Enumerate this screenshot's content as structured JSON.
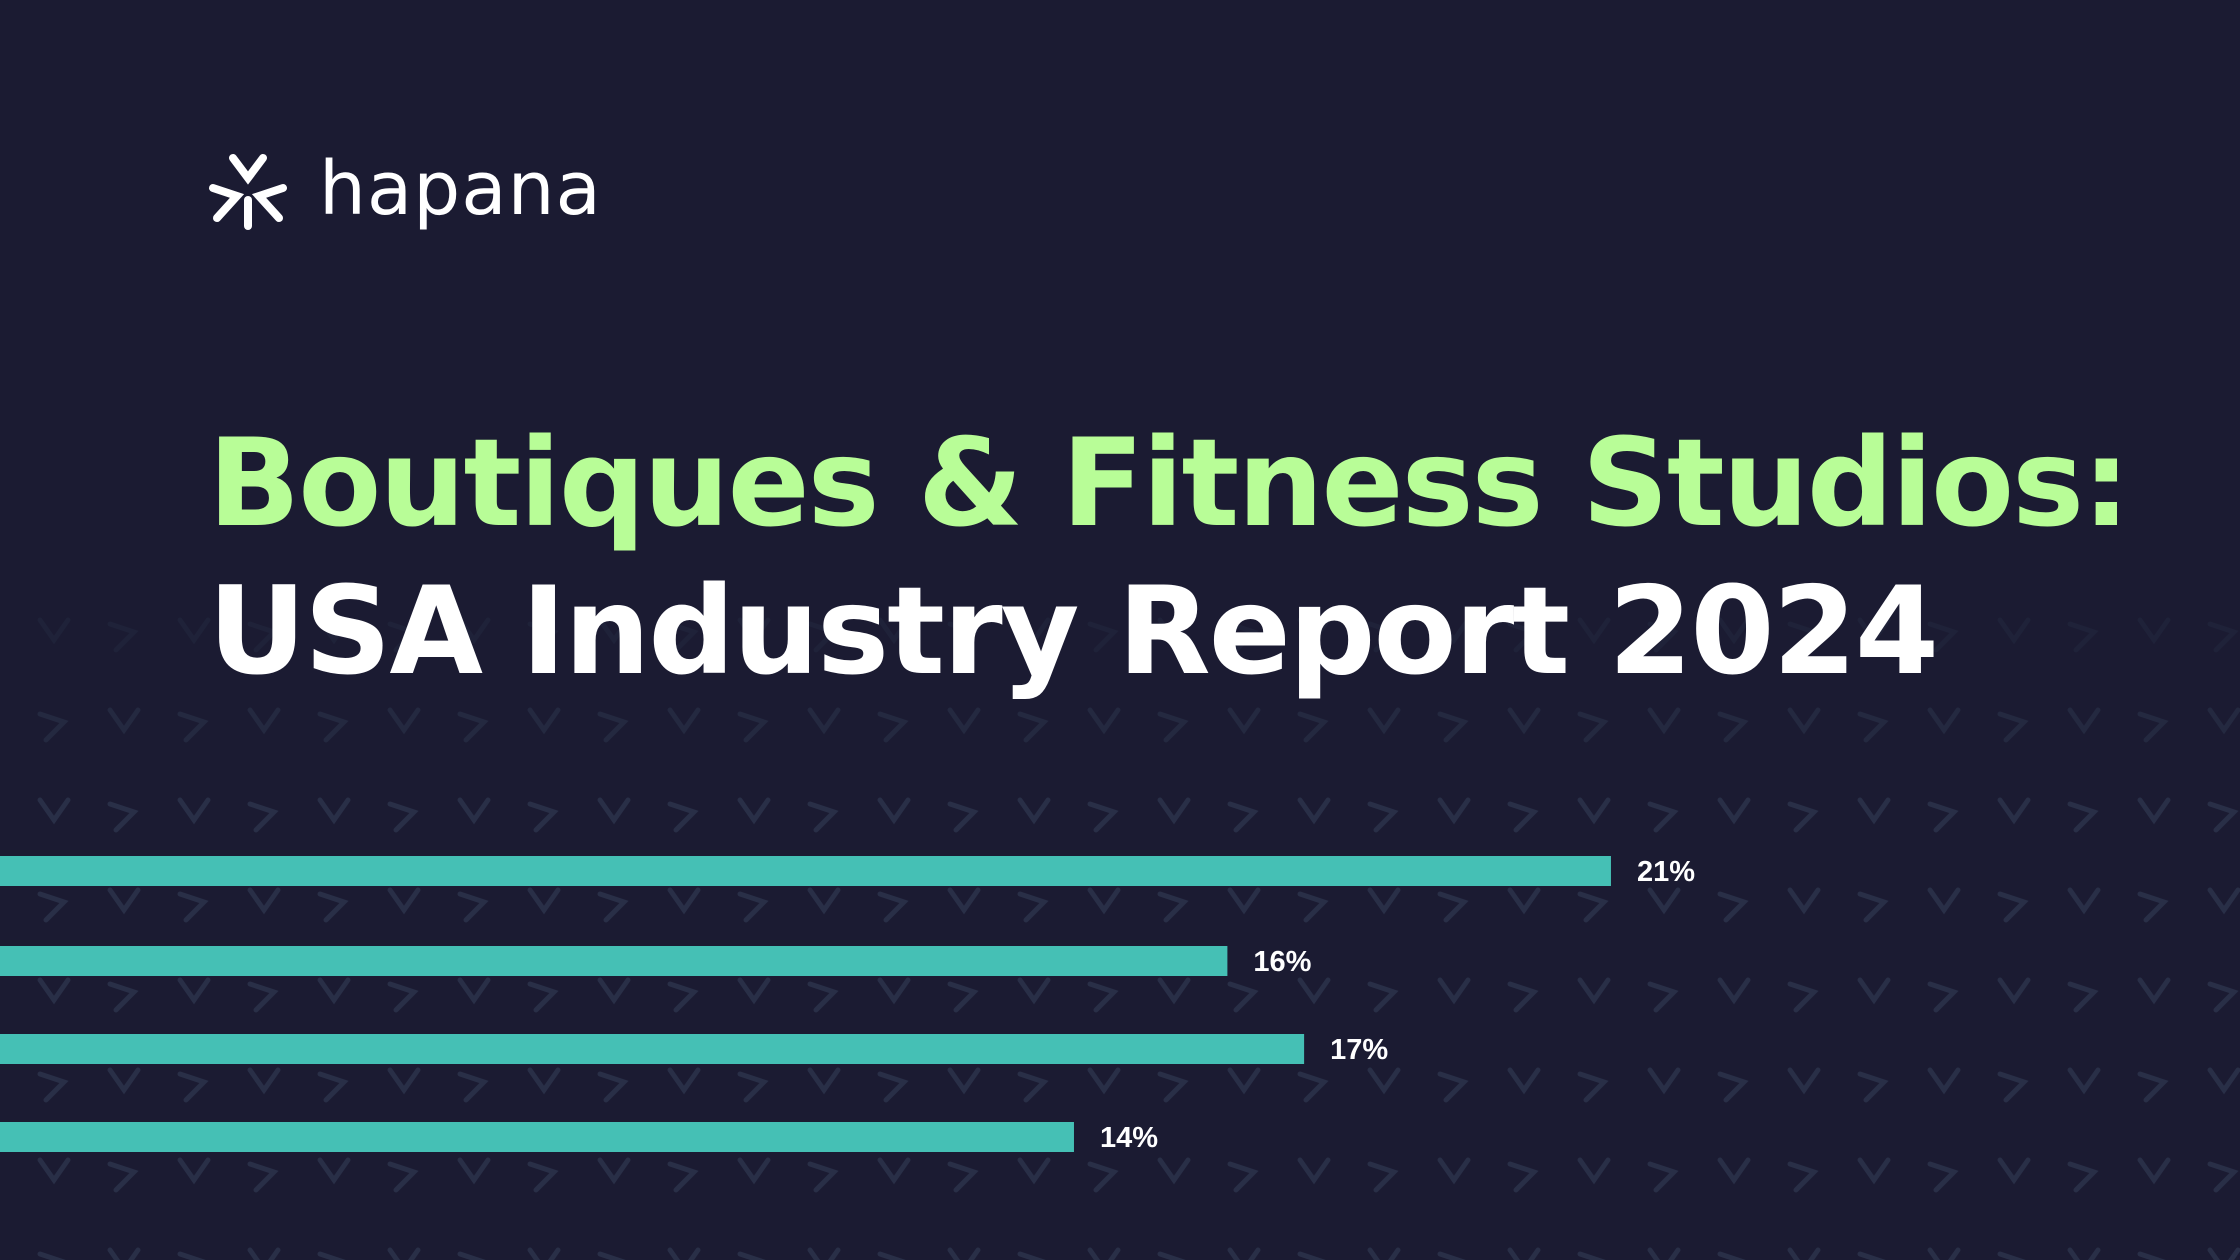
{
  "brand": {
    "name": "hapana",
    "logo_icon": "hapana-mark-icon",
    "primary_color": "#b8fd97",
    "bar_color": "#45c0b5",
    "background_color": "#1b1b32"
  },
  "headline": {
    "line_1": "Boutiques & Fitness Studios:",
    "line_2": "USA Industry Report 2024"
  },
  "chart_data": {
    "type": "bar",
    "orientation": "horizontal",
    "title": "",
    "xlabel": "",
    "ylabel": "",
    "values": [
      21,
      16,
      17,
      14
    ],
    "labels": [
      "21%",
      "16%",
      "17%",
      "14%"
    ],
    "xlim": [
      0,
      29.2
    ],
    "grid": false,
    "legend": "none"
  }
}
